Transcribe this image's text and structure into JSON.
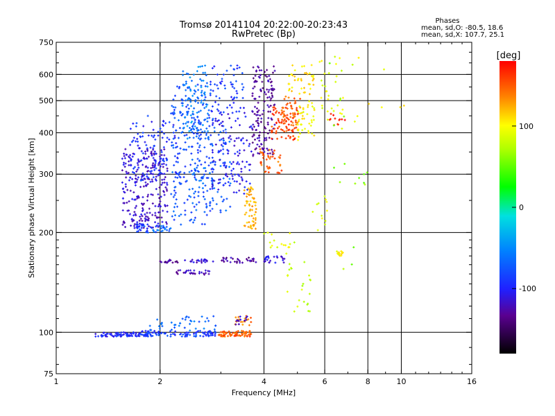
{
  "title": "Tromsø 20141104 20:22:00-20:23:43",
  "subtitle": "RwPretec (Bp)",
  "phases_box": {
    "heading": "Phases",
    "line1": "mean, sd,O: -80.5, 18.6",
    "line2": "mean, sd,X: 107.7, 25.1"
  },
  "colorbar": {
    "label": "[deg]",
    "ticks": [
      {
        "value": 100,
        "label": "100"
      },
      {
        "value": 0,
        "label": "0"
      },
      {
        "value": -100,
        "label": "-100"
      }
    ],
    "range": [
      -180,
      180
    ]
  },
  "chart_data": {
    "type": "scatter",
    "title": "Tromsø 20141104 20:22:00-20:23:43",
    "subtitle": "RwPretec (Bp)",
    "xlabel": "Frequency [MHz]",
    "ylabel": "Stationary phase Virtual Height [km]",
    "xscale": "log2",
    "yscale": "log",
    "xlim": [
      1,
      16
    ],
    "ylim": [
      75,
      750
    ],
    "x_ticks": [
      {
        "value": 1,
        "label": "1"
      },
      {
        "value": 2,
        "label": "2"
      },
      {
        "value": 4,
        "label": "4"
      },
      {
        "value": 6,
        "label": "6"
      },
      {
        "value": 8,
        "label": "8"
      },
      {
        "value": 10,
        "label": "10"
      },
      {
        "value": 16,
        "label": "16"
      }
    ],
    "y_ticks": [
      {
        "value": 75,
        "label": "75"
      },
      {
        "value": 100,
        "label": "100"
      },
      {
        "value": 200,
        "label": "200"
      },
      {
        "value": 300,
        "label": "300"
      },
      {
        "value": 400,
        "label": "400"
      },
      {
        "value": 500,
        "label": "500"
      },
      {
        "value": 600,
        "label": "600"
      },
      {
        "value": 750,
        "label": "750"
      }
    ],
    "grid_x": [
      2,
      4,
      6,
      8,
      10
    ],
    "grid_y": [
      100,
      200,
      300,
      400,
      500,
      600
    ],
    "grid": true,
    "clusters": [
      {
        "x": [
          1.3,
          1.75
        ],
        "y": [
          97,
          100
        ],
        "phase": -100,
        "n": 70
      },
      {
        "x": [
          1.75,
          2.95
        ],
        "y": [
          97,
          101
        ],
        "phase": -90,
        "n": 110
      },
      {
        "x": [
          1.8,
          2.9
        ],
        "y": [
          101,
          112
        ],
        "phase": -70,
        "n": 40
      },
      {
        "x": [
          2.95,
          3.7
        ],
        "y": [
          97,
          101
        ],
        "phase": 150,
        "n": 70
      },
      {
        "x": [
          3.3,
          3.7
        ],
        "y": [
          105,
          112
        ],
        "phase": 140,
        "n": 20
      },
      {
        "x": [
          3.3,
          3.6
        ],
        "y": [
          105,
          112
        ],
        "phase": -120,
        "n": 12
      },
      {
        "x": [
          1.55,
          2.1
        ],
        "y": [
          205,
          360
        ],
        "phase": -115,
        "n": 260
      },
      {
        "x": [
          1.6,
          2.3
        ],
        "y": [
          285,
          450
        ],
        "phase": -95,
        "n": 120
      },
      {
        "x": [
          2.15,
          2.85
        ],
        "y": [
          210,
          560
        ],
        "phase": -80,
        "n": 230
      },
      {
        "x": [
          2.3,
          2.8
        ],
        "y": [
          380,
          650
        ],
        "phase": -60,
        "n": 90
      },
      {
        "x": [
          2.5,
          3.2
        ],
        "y": [
          230,
          420
        ],
        "phase": -75,
        "n": 90
      },
      {
        "x": [
          2.8,
          3.7
        ],
        "y": [
          260,
          460
        ],
        "phase": -105,
        "n": 120
      },
      {
        "x": [
          2.8,
          3.5
        ],
        "y": [
          460,
          640
        ],
        "phase": -90,
        "n": 60
      },
      {
        "x": [
          3.7,
          4.3
        ],
        "y": [
          340,
          640
        ],
        "phase": -130,
        "n": 150
      },
      {
        "x": [
          3.5,
          3.8
        ],
        "y": [
          205,
          280
        ],
        "phase": 125,
        "n": 60
      },
      {
        "x": [
          3.9,
          4.5
        ],
        "y": [
          300,
          360
        ],
        "phase": 150,
        "n": 40
      },
      {
        "x": [
          4.2,
          5.0
        ],
        "y": [
          380,
          480
        ],
        "phase": 160,
        "n": 70
      },
      {
        "x": [
          4.5,
          5.1
        ],
        "y": [
          400,
          520
        ],
        "phase": 150,
        "n": 50
      },
      {
        "x": [
          4.7,
          5.6
        ],
        "y": [
          520,
          650
        ],
        "phase": 110,
        "n": 40
      },
      {
        "x": [
          5.0,
          5.6
        ],
        "y": [
          380,
          500
        ],
        "phase": 100,
        "n": 40
      },
      {
        "x": [
          5.8,
          6.8
        ],
        "y": [
          400,
          680
        ],
        "phase": 90,
        "n": 30
      },
      {
        "x": [
          6.2,
          6.9
        ],
        "y": [
          420,
          460
        ],
        "phase": 170,
        "n": 12
      },
      {
        "x": [
          1.7,
          1.95
        ],
        "y": [
          200,
          212
        ],
        "phase": -85,
        "n": 30
      },
      {
        "x": [
          1.9,
          2.15
        ],
        "y": [
          200,
          210
        ],
        "phase": -70,
        "n": 20
      },
      {
        "x": [
          2.0,
          2.25
        ],
        "y": [
          162,
          166
        ],
        "phase": -130,
        "n": 15
      },
      {
        "x": [
          2.2,
          2.8
        ],
        "y": [
          149,
          154
        ],
        "phase": -125,
        "n": 30
      },
      {
        "x": [
          2.35,
          2.9
        ],
        "y": [
          162,
          166
        ],
        "phase": -115,
        "n": 20
      },
      {
        "x": [
          3.0,
          3.8
        ],
        "y": [
          162,
          168
        ],
        "phase": -130,
        "n": 30
      },
      {
        "x": [
          4.0,
          4.6
        ],
        "y": [
          162,
          170
        ],
        "phase": -110,
        "n": 25
      },
      {
        "x": [
          4.0,
          4.8
        ],
        "y": [
          180,
          200
        ],
        "phase": 90,
        "n": 15
      },
      {
        "x": [
          4.5,
          5.5
        ],
        "y": [
          115,
          190
        ],
        "phase": 80,
        "n": 25
      },
      {
        "x": [
          5.5,
          6.1
        ],
        "y": [
          200,
          260
        ],
        "phase": 90,
        "n": 12
      },
      {
        "x": [
          6.5,
          6.8
        ],
        "y": [
          170,
          176
        ],
        "phase": 100,
        "n": 15
      },
      {
        "x": [
          6.0,
          8.0
        ],
        "y": [
          120,
          700
        ],
        "phase": 60,
        "n": 18
      },
      {
        "x": [
          7.0,
          11.0
        ],
        "y": [
          400,
          700
        ],
        "phase": 100,
        "n": 8
      }
    ]
  }
}
